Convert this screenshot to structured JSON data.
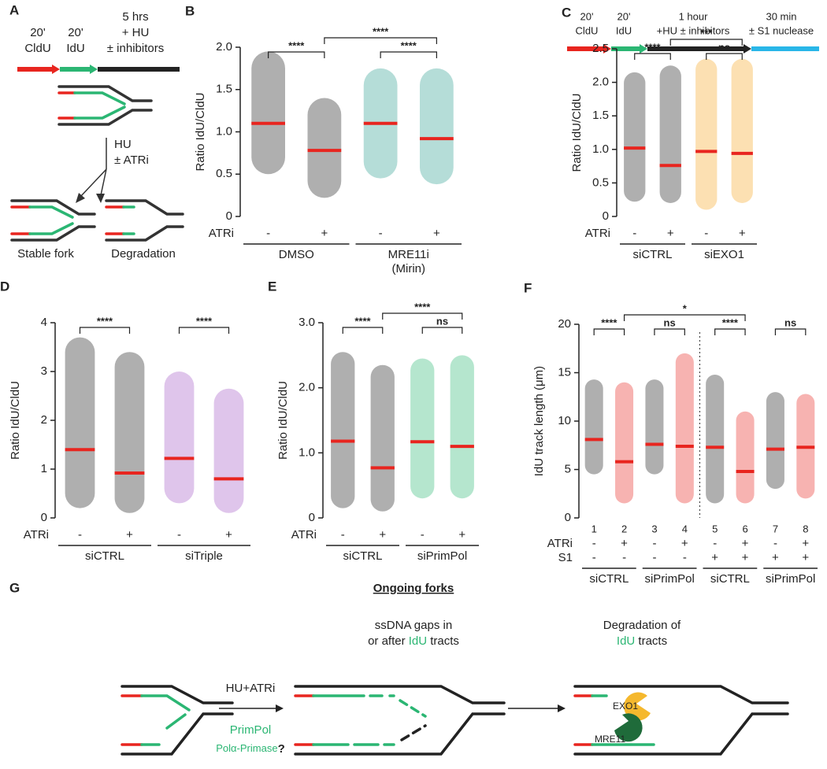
{
  "panel_a": {
    "letter": "A",
    "t1": "20'",
    "t1b": "CldU",
    "t2": "20'",
    "t2b": "IdU",
    "t3": "5 hrs",
    "t3b": "+ HU",
    "t3c": "± inhibitors",
    "arrow1": "HU",
    "arrow2": "± ATRi",
    "out1": "Stable fork",
    "out2": "Degradation"
  },
  "panel_f_timeline": {
    "t1": "20'",
    "t1b": "CldU",
    "t2": "20'",
    "t2b": "IdU",
    "t3": "1 hour",
    "t3b": "+HU ± inhibitors",
    "t4": "30 min",
    "t4b": "± S1 nuclease"
  },
  "panel_g": {
    "letter": "G",
    "title": "Ongoing forks",
    "mid1": "ssDNA gaps in",
    "mid2a": "or after ",
    "mid2b": "IdU",
    "mid2c": " tracts",
    "arrow": "HU+ATRi",
    "enz1": "PrimPol",
    "enz2": "Polα-Primase",
    "enz2q": "?",
    "right1": "Degradation of",
    "right2a": "IdU",
    "right2b": " tracts",
    "exo": "EXO1",
    "mre": "MRE11"
  },
  "chart_data": [
    {
      "type": "dot",
      "letter": "B",
      "y_label": "Ratio IdU/CldU",
      "ylim": [
        0,
        2
      ],
      "yticks": [
        0,
        0.5,
        {
          "value": 1,
          "label": "1.0"
        },
        1.5,
        {
          "value": 2,
          "label": "2.0"
        }
      ],
      "colors": [
        "#1a1a1a",
        "#1a1a1a",
        "#2a9d8f",
        "#2a9d8f"
      ],
      "medians": [
        1.1,
        0.78,
        1.1,
        0.92
      ],
      "median_color": "#e8251f",
      "ranges": [
        [
          0.5,
          1.95
        ],
        [
          0.22,
          1.4
        ],
        [
          0.45,
          1.75
        ],
        [
          0.38,
          1.75
        ]
      ],
      "conditions": [
        {
          "name": "ATRi",
          "values": [
            "-",
            "+",
            "-",
            "+"
          ]
        }
      ],
      "groups": [
        [
          "DMSO"
        ],
        [
          "MRE11i",
          "(Mirin)"
        ]
      ],
      "comparisons": [
        {
          "from": 0,
          "to": 1,
          "label": "****"
        },
        {
          "from": 1,
          "to": 3,
          "label": "****"
        },
        {
          "from": 2,
          "to": 3,
          "label": "****"
        }
      ]
    },
    {
      "type": "dot",
      "letter": "C",
      "y_label": "Ratio IdU/CldU",
      "ylim": [
        0,
        2.5
      ],
      "yticks": [
        0,
        0.5,
        {
          "value": 1,
          "label": "1.0"
        },
        1.5,
        {
          "value": 2,
          "label": "2.0"
        },
        2.5
      ],
      "colors": [
        "#1a1a1a",
        "#1a1a1a",
        "#f5a623",
        "#f5a623"
      ],
      "medians": [
        1.02,
        0.76,
        0.97,
        0.94
      ],
      "median_color": "#e8251f",
      "ranges": [
        [
          0.22,
          2.15
        ],
        [
          0.2,
          2.25
        ],
        [
          0.1,
          2.35
        ],
        [
          0.2,
          2.35
        ]
      ],
      "conditions": [
        {
          "name": "ATRi",
          "values": [
            "-",
            "+",
            "-",
            "+"
          ]
        }
      ],
      "groups": [
        [
          "siCTRL"
        ],
        [
          "siEXO1"
        ]
      ],
      "comparisons": [
        {
          "from": 0,
          "to": 1,
          "label": "****"
        },
        {
          "from": 1,
          "to": 3,
          "label": "***"
        },
        {
          "from": 2,
          "to": 3,
          "label": "ns"
        }
      ]
    },
    {
      "type": "dot",
      "letter": "D",
      "y_label": "Ratio IdU/CldU",
      "ylim": [
        0,
        4
      ],
      "yticks": [
        0,
        1,
        2,
        3,
        4
      ],
      "colors": [
        "#1a1a1a",
        "#1a1a1a",
        "#a259c6",
        "#a259c6"
      ],
      "medians": [
        1.4,
        0.92,
        1.22,
        0.8
      ],
      "median_color": "#e8251f",
      "ranges": [
        [
          0.2,
          3.7
        ],
        [
          0.1,
          3.4
        ],
        [
          0.3,
          3.0
        ],
        [
          0.1,
          2.65
        ]
      ],
      "conditions": [
        {
          "name": "ATRi",
          "values": [
            "-",
            "+",
            "-",
            "+"
          ]
        }
      ],
      "groups": [
        [
          "siCTRL"
        ],
        [
          "siTriple"
        ]
      ],
      "comparisons": [
        {
          "from": 0,
          "to": 1,
          "label": "****"
        },
        {
          "from": 2,
          "to": 3,
          "label": "****"
        }
      ]
    },
    {
      "type": "dot",
      "letter": "E",
      "y_label": "Ratio IdU/CldU",
      "ylim": [
        0,
        3
      ],
      "yticks": [
        0,
        {
          "value": 1,
          "label": "1.0"
        },
        {
          "value": 2,
          "label": "2.0"
        },
        {
          "value": 3,
          "label": "3.0"
        }
      ],
      "colors": [
        "#1a1a1a",
        "#1a1a1a",
        "#2bb673",
        "#2bb673"
      ],
      "medians": [
        1.18,
        0.77,
        1.17,
        1.1
      ],
      "median_color": "#e8251f",
      "ranges": [
        [
          0.15,
          2.55
        ],
        [
          0.1,
          2.35
        ],
        [
          0.3,
          2.45
        ],
        [
          0.3,
          2.5
        ]
      ],
      "conditions": [
        {
          "name": "ATRi",
          "values": [
            "-",
            "+",
            "-",
            "+"
          ]
        }
      ],
      "groups": [
        [
          "siCTRL"
        ],
        [
          "siPrimPol"
        ]
      ],
      "comparisons": [
        {
          "from": 0,
          "to": 1,
          "label": "****"
        },
        {
          "from": 1,
          "to": 3,
          "label": "****"
        },
        {
          "from": 2,
          "to": 3,
          "label": "ns"
        }
      ]
    },
    {
      "type": "dot",
      "letter": "F",
      "y_label": "IdU track length (μm)",
      "ylim": [
        0,
        20
      ],
      "yticks": [
        0,
        5,
        10,
        15,
        20
      ],
      "categories": [
        "1",
        "2",
        "3",
        "4",
        "5",
        "6",
        "7",
        "8"
      ],
      "colors": [
        "#1a1a1a",
        "#e8251f",
        "#1a1a1a",
        "#e8251f",
        "#1a1a1a",
        "#e8251f",
        "#1a1a1a",
        "#e8251f"
      ],
      "medians": [
        8.1,
        5.8,
        7.6,
        7.4,
        7.3,
        4.8,
        7.1,
        7.3
      ],
      "median_color": "#e8251f",
      "ranges": [
        [
          4.5,
          14.3
        ],
        [
          1.5,
          14
        ],
        [
          4.5,
          14.3
        ],
        [
          1.5,
          17
        ],
        [
          1.5,
          14.8
        ],
        [
          1.5,
          11
        ],
        [
          3,
          13
        ],
        [
          2,
          12.8
        ]
      ],
      "conditions": [
        {
          "name": "ATRi",
          "values": [
            "-",
            "+",
            "-",
            "+",
            "-",
            "+",
            "-",
            "+"
          ]
        },
        {
          "name": "S1",
          "values": [
            "-",
            "-",
            "-",
            "-",
            "+",
            "+",
            "+",
            "+"
          ]
        }
      ],
      "groups": [
        [
          "siCTRL"
        ],
        [
          "siPrimPol"
        ],
        [
          "siCTRL"
        ],
        [
          "siPrimPol"
        ]
      ],
      "comparisons": [
        {
          "from": 0,
          "to": 1,
          "label": "****"
        },
        {
          "from": 1,
          "to": 5,
          "label": "*"
        },
        {
          "from": 2,
          "to": 3,
          "label": "ns"
        },
        {
          "from": 4,
          "to": 5,
          "label": "****"
        },
        {
          "from": 6,
          "to": 7,
          "label": "ns"
        }
      ]
    }
  ]
}
